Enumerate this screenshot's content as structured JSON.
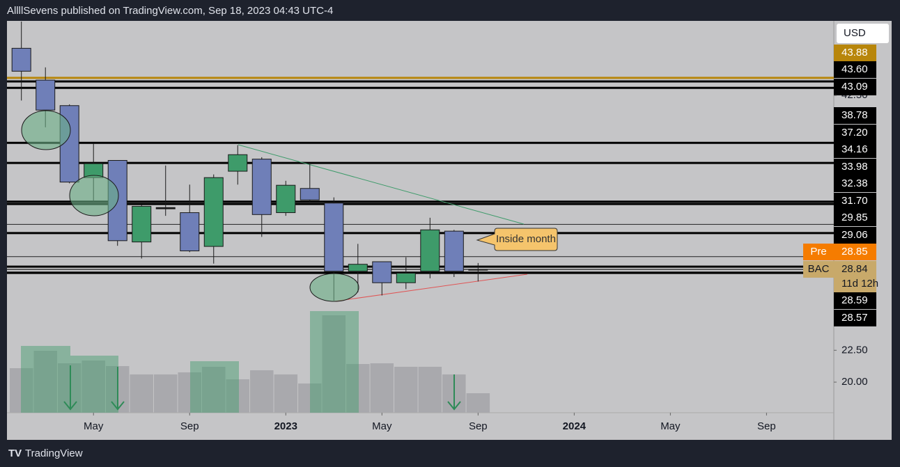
{
  "header": {
    "text": "AllllSevens published on TradingView.com, Sep 18, 2023 04:43 UTC-4"
  },
  "footer": {
    "brand": "TradingView"
  },
  "chart_data": {
    "type": "candlestick",
    "currency": "USD",
    "x": [
      2,
      3,
      4,
      5,
      6,
      7,
      8,
      9,
      10,
      11,
      12,
      13,
      14,
      15,
      16,
      17,
      18,
      19,
      20,
      21
    ],
    "open": [
      46.2,
      43.7,
      41.7,
      36.05,
      37.4,
      31.0,
      33.6,
      33.3,
      30.65,
      36.55,
      37.5,
      33.3,
      35.2,
      34.05,
      28.7,
      29.45,
      27.8,
      28.7,
      31.85,
      28.8
    ],
    "high": [
      48.3,
      44.7,
      41.8,
      38.7,
      37.4,
      33.9,
      37.0,
      35.5,
      36.3,
      38.6,
      37.65,
      35.8,
      37.1,
      34.5,
      30.85,
      29.45,
      29.8,
      32.9,
      31.95,
      29.35
    ],
    "low": [
      42.1,
      40.0,
      35.6,
      34.15,
      30.7,
      29.7,
      33.05,
      30.2,
      29.3,
      35.5,
      31.4,
      33.05,
      34.15,
      26.4,
      27.05,
      26.8,
      27.3,
      28.15,
      28.25,
      27.9
    ],
    "close": [
      44.4,
      41.35,
      35.7,
      37.15,
      31.1,
      33.8,
      33.7,
      30.3,
      36.05,
      37.85,
      33.15,
      35.45,
      34.3,
      28.7,
      29.25,
      27.8,
      28.55,
      31.95,
      28.7,
      28.84
    ],
    "up_color": "#3e9b6a",
    "down_color": "#6f7fb8",
    "volume": [
      64,
      89,
      71,
      75,
      67,
      55,
      55,
      58,
      66,
      48,
      61,
      55,
      42,
      140,
      70,
      71,
      66,
      66,
      55,
      28
    ],
    "volume_ylim": [
      0,
      150
    ],
    "volume_color": "#a9a9ad",
    "xlim": [
      1.4,
      35.8
    ],
    "xticks": [
      {
        "value": 5,
        "label": "May"
      },
      {
        "value": 9,
        "label": "Sep"
      },
      {
        "value": 13,
        "label": "2023"
      },
      {
        "value": 17,
        "label": "May"
      },
      {
        "value": 21,
        "label": "Sep"
      },
      {
        "value": 25,
        "label": "2024"
      },
      {
        "value": 29,
        "label": "May"
      },
      {
        "value": 33,
        "label": "Sep"
      }
    ],
    "ylim": [
      17.6,
      48.35
    ],
    "yticks": [
      {
        "value": 20,
        "label": "20.00"
      },
      {
        "value": 22.5,
        "label": "22.50"
      },
      {
        "value": 42.5,
        "label": "42.50"
      }
    ],
    "price_lines": [
      {
        "value": 43.88,
        "label": "43.88",
        "color": "#b8860b"
      },
      {
        "value": 43.6,
        "label": "43.60",
        "color": "#000000"
      },
      {
        "value": 43.09,
        "label": "43.09",
        "color": "#000000"
      },
      {
        "value": 38.78,
        "label": "38.78",
        "color": "#000000"
      },
      {
        "value": 37.2,
        "label": "37.20",
        "color": "#000000"
      },
      {
        "value": 34.16,
        "label": "34.16",
        "color": "#000000"
      },
      {
        "value": 33.98,
        "label": "33.98",
        "color": "#000000"
      },
      {
        "value": 32.38,
        "label": "32.38",
        "color": "#000000"
      },
      {
        "value": 31.7,
        "label": "31.70",
        "color": "#000000"
      },
      {
        "value": 29.85,
        "label": "29.85",
        "color": "#000000"
      },
      {
        "value": 29.06,
        "label": "29.06",
        "color": "#000000"
      },
      {
        "value": 28.85,
        "label": "28.85",
        "color": "#f57c00",
        "tag": "Pre"
      },
      {
        "value": 28.84,
        "label": "28.84",
        "color": "#c8a96a",
        "tag": "BAC",
        "countdown": "11d 12h"
      },
      {
        "value": 28.59,
        "label": "28.59",
        "color": "#000000"
      },
      {
        "value": 28.57,
        "label": "28.57",
        "color": "#000000"
      }
    ],
    "annotation": "Inside month"
  }
}
